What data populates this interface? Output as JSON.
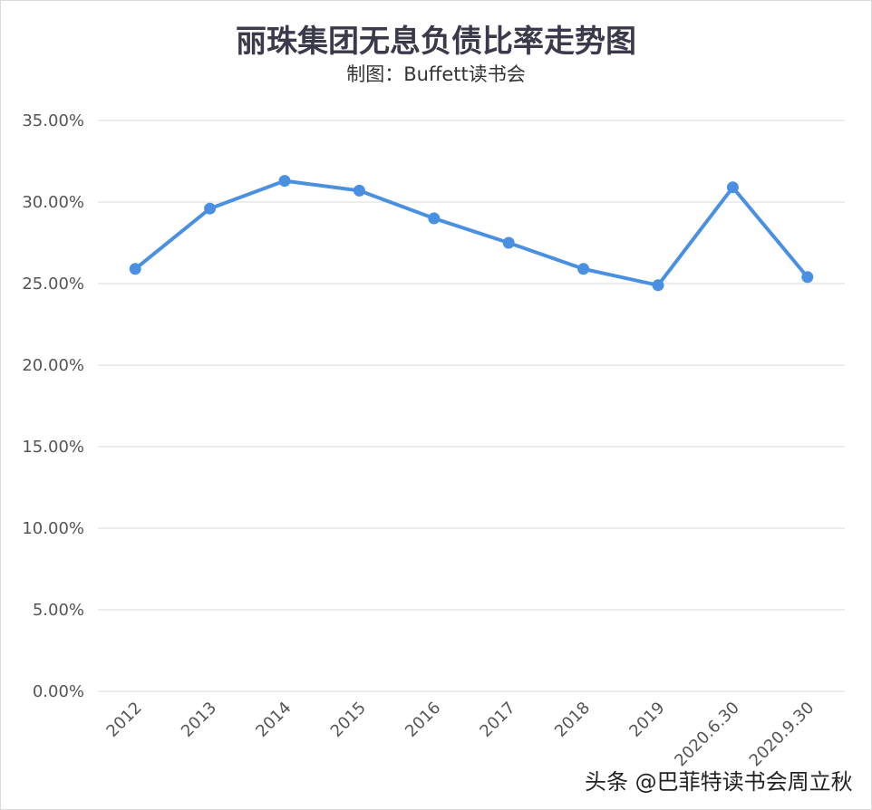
{
  "chart_data": {
    "type": "line",
    "title": "丽珠集团无息负债比率走势图",
    "subtitle": "制图：Buffett读书会",
    "categories": [
      "2012",
      "2013",
      "2014",
      "2015",
      "2016",
      "2017",
      "2018",
      "2019",
      "2020.6.30",
      "2020.9.30"
    ],
    "series": [
      {
        "values": [
          25.9,
          29.6,
          31.3,
          30.7,
          29.0,
          27.5,
          25.9,
          24.9,
          30.9,
          25.4
        ]
      }
    ],
    "ylim": [
      0,
      35
    ],
    "yticks": [
      "0.00%",
      "5.00%",
      "10.00%",
      "15.00%",
      "20.00%",
      "25.00%",
      "30.00%",
      "35.00%"
    ],
    "grid": true,
    "legend": "none",
    "line_color": "#4a90e2"
  },
  "watermark": "头条 @巴菲特读书会周立秋"
}
